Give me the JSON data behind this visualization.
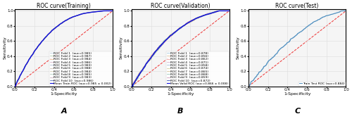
{
  "title_A": "ROC curve(Training)",
  "title_B": "ROC curve(Validation)",
  "title_C": "ROC curve(Test)",
  "xlabel": "1-Specificity",
  "ylabel": "Sensitivity",
  "label_A": "A",
  "label_B": "B",
  "label_C": "C",
  "fold_colors_train": [
    "#b0c8d8",
    "#a8c8a0",
    "#e8b080",
    "#d0a8c0",
    "#a8b8d0",
    "#c8b8a8",
    "#d0c8a8",
    "#a8c8b8",
    "#c8a8b8",
    "#4060b0"
  ],
  "fold_colors_val": [
    "#90c0d8",
    "#d8b888",
    "#e89090",
    "#c8a8c8",
    "#90b0d0",
    "#c8c888",
    "#d0b888",
    "#88c0b0",
    "#c888b0",
    "#1030a0"
  ],
  "mean_train_color": "#1010dd",
  "mean_val_color": "#1010dd",
  "test_color": "#5090c0",
  "diagonal_color": "#ee3333",
  "bg_color": "#f5f5f5",
  "grid_color": "#dddddd",
  "n_folds": 10,
  "title_fontsize": 5.5,
  "axis_fontsize": 4.5,
  "tick_fontsize": 4,
  "legend_fontsize": 3.2,
  "label_fontsize": 8
}
